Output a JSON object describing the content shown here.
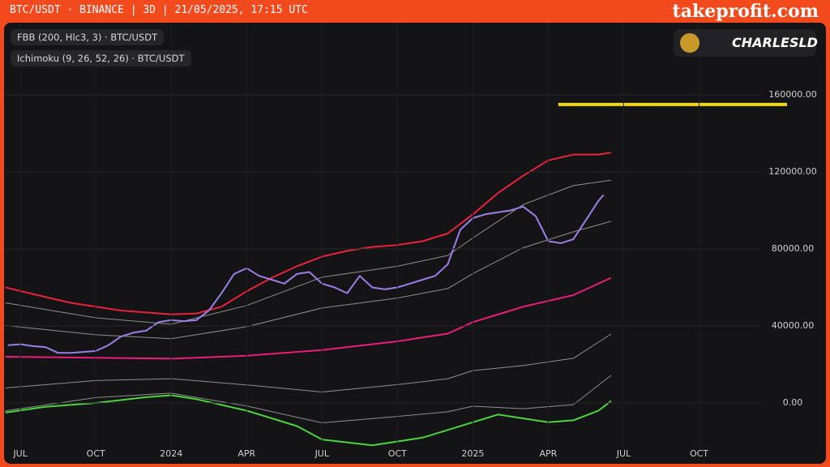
{
  "header": {
    "symbol": "BTC/USDT · BINANCE | 3D | 21/05/2025, 17:15 UTC",
    "brand": "takeprofit.com"
  },
  "indicators": [
    "FBB (200, Hlc3, 3) · BTC/USDT",
    "Ichimoku (9, 26, 52, 26) · BTC/USDT"
  ],
  "author": "CHARLESLD",
  "chart_data": {
    "type": "line",
    "xlim": [
      -0.65,
      29.5
    ],
    "xticks": [
      {
        "value": 0,
        "label": "JUL"
      },
      {
        "value": 3,
        "label": "OCT"
      },
      {
        "value": 6,
        "label": "2024"
      },
      {
        "value": 9,
        "label": "APR"
      },
      {
        "value": 12,
        "label": "JUL"
      },
      {
        "value": 15,
        "label": "OCT"
      },
      {
        "value": 18,
        "label": "2025"
      },
      {
        "value": 21,
        "label": "APR"
      },
      {
        "value": 24,
        "label": "JUL"
      },
      {
        "value": 27,
        "label": "OCT"
      }
    ],
    "ylim": [
      -20000,
      190000
    ],
    "yticks": [
      {
        "value": 0,
        "label": "0.00"
      },
      {
        "value": 40000,
        "label": "40000.00"
      },
      {
        "value": 80000,
        "label": "80000.00"
      },
      {
        "value": 120000,
        "label": "120000.00"
      },
      {
        "value": 160000,
        "label": "160000.00"
      }
    ],
    "series": [
      {
        "color": "#8f8f8f",
        "x": [
          -0.6,
          3,
          6,
          9,
          12,
          15,
          17,
          18,
          20,
          22,
          23.5
        ],
        "values": [
          52000,
          44200,
          40900,
          50600,
          65300,
          71000,
          76600,
          85700,
          103000,
          112900,
          115700
        ]
      },
      {
        "color": "#8f8f8f",
        "x": [
          -0.6,
          3,
          6,
          9,
          12,
          15,
          17,
          18,
          20,
          22,
          23.5
        ],
        "values": [
          40200,
          35400,
          33400,
          39600,
          49300,
          54500,
          59400,
          67200,
          80600,
          88900,
          94300
        ]
      },
      {
        "color": "#8f8f8f",
        "x": [
          -0.6,
          3,
          6,
          9,
          12,
          15,
          17,
          18,
          20,
          22,
          23.5
        ],
        "values": [
          7800,
          11600,
          12600,
          9400,
          5700,
          9500,
          12600,
          16800,
          19400,
          23200,
          35800
        ]
      },
      {
        "color": "#8f8f8f",
        "x": [
          -0.6,
          3,
          6,
          9,
          12,
          15,
          17,
          18,
          20,
          22,
          23.5
        ],
        "values": [
          -4100,
          2800,
          5100,
          -1600,
          -10300,
          -7000,
          -4600,
          -1700,
          -3000,
          -900,
          14300
        ]
      },
      {
        "color": "#e91e78",
        "x": [
          -0.6,
          3,
          6,
          9,
          12,
          15,
          17,
          18,
          20,
          22,
          23.5
        ],
        "values": [
          24000,
          23500,
          23000,
          24500,
          27500,
          32000,
          36000,
          42000,
          50000,
          56000,
          65000
        ]
      },
      {
        "color": "#e8233a",
        "x": [
          -0.6,
          1,
          2,
          3,
          4,
          5,
          6,
          7,
          8,
          9,
          10,
          11,
          12,
          13,
          14,
          15,
          16,
          17,
          18,
          19,
          20,
          21,
          22,
          23,
          23.5
        ],
        "values": [
          60000,
          55000,
          52000,
          50000,
          48000,
          47000,
          46000,
          46500,
          50000,
          58000,
          65000,
          71000,
          76000,
          79000,
          81000,
          82000,
          84000,
          88000,
          98000,
          109000,
          118000,
          126000,
          129000,
          129000,
          130000
        ]
      },
      {
        "color": "#4cd43f",
        "x": [
          -0.6,
          1,
          3,
          5,
          6,
          7,
          9,
          11,
          12,
          14,
          16,
          18,
          19,
          21,
          22,
          23,
          23.5
        ],
        "values": [
          -5000,
          -2000,
          0,
          3000,
          4000,
          2000,
          -4000,
          -12000,
          -19000,
          -22000,
          -18000,
          -10000,
          -6000,
          -10000,
          -9000,
          -4000,
          1000
        ]
      },
      {
        "color": "#9b7fe6",
        "x": [
          -0.5,
          0,
          0.5,
          1,
          1.5,
          2,
          2.5,
          3,
          3.5,
          4,
          4.5,
          5,
          5.5,
          6,
          6.5,
          7,
          7.5,
          8,
          8.5,
          9,
          9.5,
          10,
          10.5,
          11,
          11.5,
          12,
          12.5,
          13,
          13.5,
          14,
          14.5,
          15,
          15.5,
          16,
          16.5,
          17,
          17.5,
          18,
          18.5,
          19,
          19.5,
          20,
          20.5,
          21,
          21.5,
          22,
          22.5,
          23,
          23.2
        ],
        "values": [
          30000,
          30500,
          29500,
          29000,
          26000,
          26000,
          26500,
          27000,
          30000,
          34500,
          36500,
          37500,
          42000,
          43000,
          42500,
          43000,
          48000,
          57000,
          67000,
          70000,
          66000,
          64000,
          62000,
          67000,
          68000,
          62000,
          60000,
          57000,
          66000,
          60000,
          59000,
          60000,
          62000,
          64000,
          66000,
          72000,
          90000,
          96000,
          98000,
          99000,
          100000,
          102000,
          97000,
          84000,
          83000,
          85000,
          95000,
          105000,
          108000
        ]
      },
      {
        "color": "#f5d90a",
        "x": [
          21.4,
          30.5
        ],
        "values": [
          155000,
          155000
        ]
      }
    ]
  }
}
